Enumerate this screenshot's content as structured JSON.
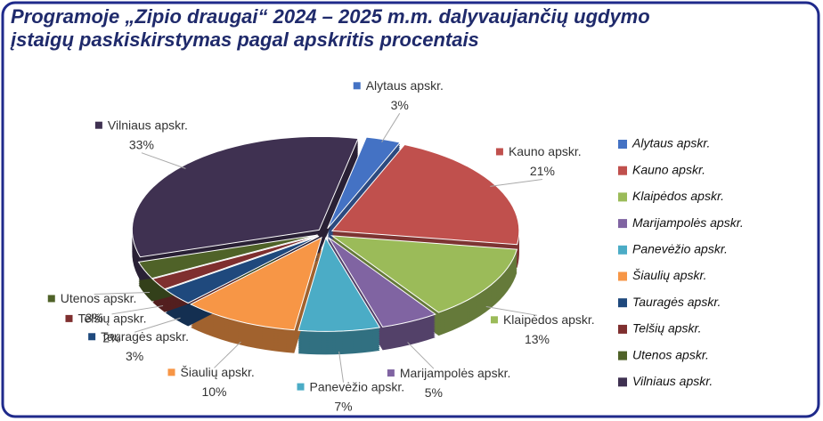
{
  "chart_data": {
    "type": "pie",
    "title": "Programoje „Zipio draugai“  2024 – 2025 m.m.  dalyvaujančių ugdymo įstaigų paskiskirstymas pagal apskritis procentais",
    "categories": [
      "Alytaus apskr.",
      "Kauno apskr.",
      "Klaipėdos apskr.",
      "Marijampolės apskr.",
      "Panevėžio apskr.",
      "Šiaulių apskr.",
      "Tauragės apskr.",
      "Telšių apskr.",
      "Utenos apskr.",
      "Vilniaus apskr."
    ],
    "values": [
      3,
      21,
      13,
      5,
      7,
      10,
      3,
      2,
      3,
      33
    ],
    "value_labels": [
      "3%",
      "21%",
      "13%",
      "5%",
      "7%",
      "10%",
      "3%",
      "2%",
      "3%",
      "33%"
    ],
    "colors": [
      "#4472c4",
      "#c0504d",
      "#9bbb59",
      "#8064a2",
      "#4bacc6",
      "#f79646",
      "#1f497d",
      "#7f2f2f",
      "#4f6228",
      "#3f3151"
    ],
    "legend": "right"
  }
}
